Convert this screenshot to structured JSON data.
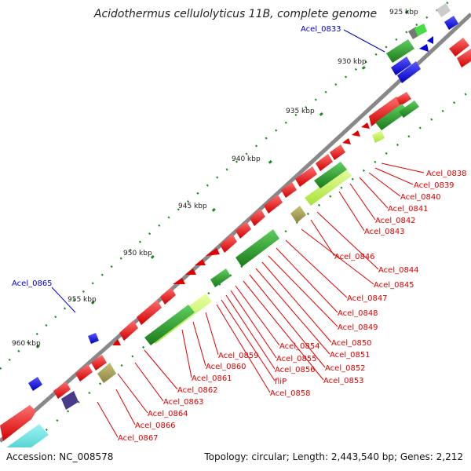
{
  "title": "Acidothermus cellulolyticus 11B, complete genome",
  "footer": {
    "accession": "Accession: NC_008578",
    "summary": "Topology: circular; Length: 2,443,540 bp; Genes: 2,212"
  },
  "ticks": [
    "925 kbp",
    "930 kbp",
    "935 kbp",
    "940 kbp",
    "945 kbp",
    "950 kbp",
    "955 kbp",
    "960 kbp"
  ],
  "labels": {
    "blue": [
      "Acel_0833",
      "Acel_0865"
    ],
    "red": [
      "Acel_0838",
      "Acel_0839",
      "Acel_0840",
      "Acel_0841",
      "Acel_0842",
      "Acel_0843",
      "Acel_0846",
      "Acel_0844",
      "Acel_0845",
      "Acel_0847",
      "Acel_0848",
      "Acel_0849",
      "Acel_0850",
      "Acel_0851",
      "Acel_0852",
      "Acel_0853",
      "Acel_0854",
      "Acel_0855",
      "Acel_0856",
      "fliP",
      "Acel_0858",
      "Acel_0859",
      "Acel_0860",
      "Acel_0861",
      "Acel_0862",
      "Acel_0863",
      "Acel_0864",
      "Acel_0866",
      "Acel_0867"
    ]
  },
  "colors": {
    "cds_forward": "#ff0000",
    "cds_reverse": "#0000ff",
    "feature_dark_green": "#228b22",
    "feature_light_green": "#adff2f",
    "feature_olive": "#8b8b3a",
    "backbone": "#888888",
    "label_blue": "#0000cc",
    "label_red": "#dd0000"
  }
}
